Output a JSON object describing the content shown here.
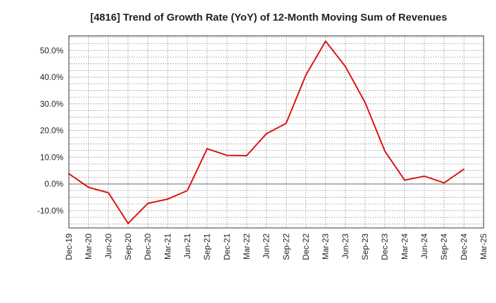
{
  "chart_data": {
    "type": "line",
    "title": "[4816]  Trend of Growth Rate (YoY) of 12-Month Moving Sum of Revenues",
    "xlabel": "",
    "ylabel": "",
    "x_ticks": [
      "Dec-19",
      "Mar-20",
      "Jun-20",
      "Sep-20",
      "Dec-20",
      "Mar-21",
      "Jun-21",
      "Sep-21",
      "Dec-21",
      "Mar-22",
      "Jun-22",
      "Sep-22",
      "Dec-22",
      "Mar-23",
      "Jun-23",
      "Sep-23",
      "Dec-23",
      "Mar-24",
      "Jun-24",
      "Sep-24",
      "Dec-24",
      "Mar-25"
    ],
    "y_ticks": [
      -10,
      0,
      10,
      20,
      30,
      40,
      50
    ],
    "y_tick_labels": [
      "-10.0%",
      "0.0%",
      "10.0%",
      "20.0%",
      "30.0%",
      "40.0%",
      "50.0%"
    ],
    "ylim": [
      -16.5,
      55.5
    ],
    "grid": true,
    "color": "#dd1111",
    "series": [
      {
        "x": [
          "Dec-19",
          "Mar-20",
          "Jun-20",
          "Sep-20",
          "Dec-20",
          "Mar-21",
          "Jun-21",
          "Sep-21",
          "Dec-21",
          "Mar-22",
          "Jun-22",
          "Sep-22",
          "Dec-22",
          "Mar-23",
          "Jun-23",
          "Sep-23",
          "Dec-23",
          "Mar-24",
          "Jun-24",
          "Sep-24",
          "Dec-24"
        ],
        "values": [
          3.8,
          -1.3,
          -3.3,
          -14.8,
          -7.3,
          -5.7,
          -2.5,
          13.2,
          10.7,
          10.6,
          18.8,
          22.7,
          40.8,
          53.5,
          44.0,
          30.5,
          12.3,
          1.4,
          2.9,
          0.4,
          5.5
        ]
      }
    ]
  }
}
